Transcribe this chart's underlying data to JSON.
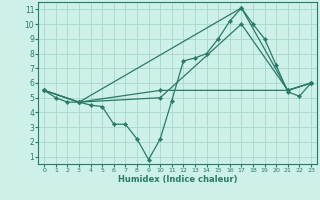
{
  "xlabel": "Humidex (Indice chaleur)",
  "xlim": [
    -0.5,
    23.5
  ],
  "ylim": [
    0.5,
    11.5
  ],
  "xticks": [
    0,
    1,
    2,
    3,
    4,
    5,
    6,
    7,
    8,
    9,
    10,
    11,
    12,
    13,
    14,
    15,
    16,
    17,
    18,
    19,
    20,
    21,
    22,
    23
  ],
  "yticks": [
    1,
    2,
    3,
    4,
    5,
    6,
    7,
    8,
    9,
    10,
    11
  ],
  "background_color": "#cdf0e8",
  "grid_color": "#a8d8cc",
  "line_color": "#2a7a6a",
  "lines": [
    {
      "x": [
        0,
        1,
        2,
        3,
        4,
        5,
        6,
        7,
        8,
        9,
        10,
        11,
        12,
        13,
        14,
        15,
        16,
        17,
        18,
        19,
        20,
        21,
        22,
        23
      ],
      "y": [
        5.5,
        5.0,
        4.7,
        4.7,
        4.5,
        4.4,
        3.2,
        3.2,
        2.2,
        0.8,
        2.2,
        4.8,
        7.5,
        7.7,
        8.0,
        9.0,
        10.2,
        11.1,
        10.0,
        9.0,
        7.2,
        5.4,
        5.1,
        6.0
      ],
      "marker": true
    },
    {
      "x": [
        0,
        3,
        17,
        21,
        23
      ],
      "y": [
        5.5,
        4.7,
        11.1,
        5.5,
        6.0
      ],
      "marker": true
    },
    {
      "x": [
        0,
        3,
        10,
        17,
        21,
        23
      ],
      "y": [
        5.5,
        4.7,
        5.0,
        10.0,
        5.5,
        6.0
      ],
      "marker": true
    },
    {
      "x": [
        0,
        3,
        10,
        21,
        23
      ],
      "y": [
        5.5,
        4.7,
        5.5,
        5.5,
        6.0
      ],
      "marker": true
    }
  ]
}
